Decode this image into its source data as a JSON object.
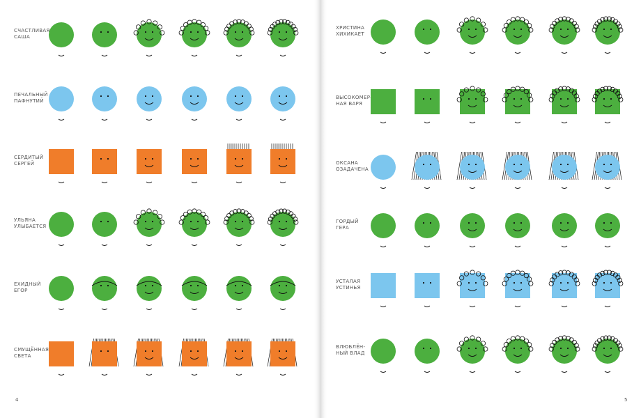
{
  "left_page": {
    "rows": [
      {
        "label": [
          "СЧАСТЛИВАЯ",
          "САША"
        ]
      },
      {
        "label": [
          "ПЕЧАЛЬНЫЙ",
          "ПАФНУТИЙ"
        ]
      },
      {
        "label": [
          "СЕРДИТЫЙ",
          "СЕРГЕЙ"
        ]
      },
      {
        "label": [
          "УЛЬЯНА",
          "УЛЫБАЕТСЯ"
        ]
      },
      {
        "label": [
          "ЕХИДНЫЙ",
          "ЕГОР"
        ]
      },
      {
        "label": [
          "СМУЩЁННАЯ",
          "СВЕТА"
        ]
      }
    ],
    "page_number": "4"
  },
  "right_page": {
    "rows": [
      {
        "label": [
          "ХРИСТИНА",
          "ХИХИКАЕТ"
        ]
      },
      {
        "label": [
          "ВЫСОКОМЕР-",
          "НАЯ ВАРЯ"
        ]
      },
      {
        "label": [
          "ОКСАНА",
          "ОЗАДАЧЕНА"
        ]
      },
      {
        "label": [
          "ГОРДЫЙ",
          "ГЕРА"
        ]
      },
      {
        "label": [
          "УСТАЛАЯ",
          "УСТИНЬЯ"
        ]
      },
      {
        "label": [
          "ВЛЮБЛЁН-",
          "НЫЙ ВЛАД"
        ]
      }
    ],
    "page_number": "5"
  }
}
